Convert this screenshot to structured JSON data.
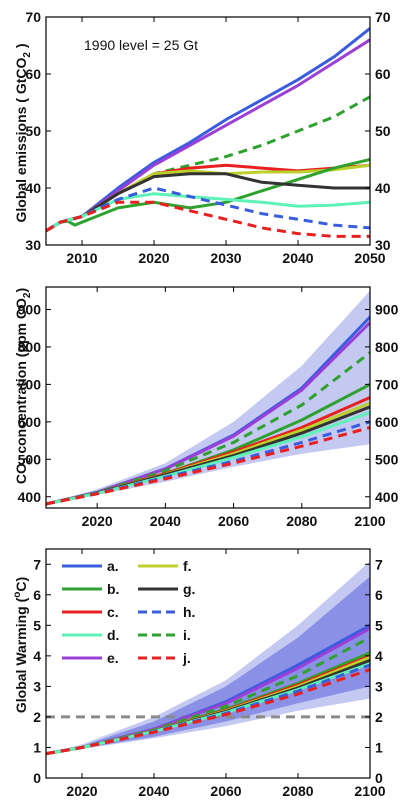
{
  "chart_data": [
    {
      "type": "line",
      "ylabel_main": "Global emissions ( GtCO",
      "ylabel_sub": "2",
      "ylabel_tail": " )",
      "annotation": "1990 level = 25 Gt",
      "xlim": [
        2005,
        2050
      ],
      "ylim": [
        30,
        70
      ],
      "xticks": [
        2010,
        2020,
        2030,
        2040,
        2050
      ],
      "yticks": [
        30,
        40,
        50,
        60,
        70
      ],
      "grid": false,
      "series": [
        {
          "name": "a.",
          "color": "#3a5de0",
          "dash": false,
          "x": [
            2005,
            2007,
            2010,
            2015,
            2020,
            2025,
            2030,
            2035,
            2040,
            2045,
            2050
          ],
          "y": [
            32.5,
            34,
            35,
            40,
            44.5,
            48,
            52,
            55.5,
            59,
            63,
            68
          ]
        },
        {
          "name": "e.",
          "color": "#9b3fd8",
          "dash": false,
          "x": [
            2005,
            2007,
            2010,
            2015,
            2020,
            2025,
            2030,
            2035,
            2040,
            2045,
            2050
          ],
          "y": [
            32.5,
            34,
            35,
            39.5,
            44,
            47.5,
            51,
            54.5,
            58,
            62,
            66
          ]
        },
        {
          "name": "i.",
          "color": "#2ea12e",
          "dash": true,
          "x": [
            2005,
            2007,
            2010,
            2015,
            2020,
            2025,
            2030,
            2035,
            2040,
            2045,
            2050
          ],
          "y": [
            32.5,
            34,
            35,
            39,
            42.5,
            44,
            45.5,
            47.5,
            50,
            52.5,
            56
          ]
        },
        {
          "name": "c.",
          "color": "#e8201f",
          "dash": false,
          "x": [
            2005,
            2007,
            2010,
            2015,
            2020,
            2025,
            2030,
            2035,
            2040,
            2045,
            2050
          ],
          "y": [
            32.5,
            34,
            35,
            39,
            42.5,
            43.5,
            44,
            43.5,
            43,
            43.5,
            44
          ]
        },
        {
          "name": "f.",
          "color": "#bcd02c",
          "dash": false,
          "x": [
            2005,
            2007,
            2010,
            2015,
            2020,
            2025,
            2030,
            2035,
            2040,
            2045,
            2050
          ],
          "y": [
            32.5,
            34,
            35,
            39,
            42.5,
            43,
            42.5,
            42.8,
            42.8,
            43.2,
            44
          ]
        },
        {
          "name": "b.",
          "color": "#2ea12e",
          "dash": false,
          "x": [
            2005,
            2007,
            2008,
            2009,
            2010,
            2012,
            2015,
            2020,
            2025,
            2030,
            2035,
            2040,
            2045,
            2050
          ],
          "y": [
            32.5,
            34,
            34.2,
            33.5,
            34,
            35,
            36.5,
            37.5,
            36.5,
            37.5,
            39.5,
            41.5,
            43.5,
            45
          ]
        },
        {
          "name": "g.",
          "color": "#333333",
          "dash": false,
          "x": [
            2005,
            2007,
            2010,
            2015,
            2020,
            2025,
            2030,
            2035,
            2040,
            2045,
            2050
          ],
          "y": [
            32.5,
            34,
            35,
            39,
            42,
            42.5,
            42.5,
            41,
            40.5,
            40,
            40
          ]
        },
        {
          "name": "d.",
          "color": "#5ef2b8",
          "dash": false,
          "x": [
            2005,
            2007,
            2010,
            2015,
            2020,
            2025,
            2030,
            2035,
            2040,
            2045,
            2050
          ],
          "y": [
            32.5,
            34,
            35,
            38,
            39,
            38.5,
            38,
            37.5,
            36.8,
            37,
            37.5
          ]
        },
        {
          "name": "h.",
          "color": "#3a5de0",
          "dash": true,
          "x": [
            2005,
            2007,
            2010,
            2015,
            2020,
            2025,
            2030,
            2035,
            2040,
            2045,
            2050
          ],
          "y": [
            32.5,
            34,
            35,
            38,
            40,
            38.5,
            37,
            35.5,
            34.5,
            33.5,
            33
          ]
        },
        {
          "name": "j.",
          "color": "#e8201f",
          "dash": true,
          "x": [
            2005,
            2007,
            2010,
            2015,
            2020,
            2025,
            2030,
            2035,
            2040,
            2045,
            2050
          ],
          "y": [
            32.5,
            34,
            35,
            37.5,
            37.5,
            36,
            34.5,
            33,
            32,
            31.5,
            31.5
          ]
        }
      ]
    },
    {
      "type": "line",
      "ylabel_pre": "CO",
      "ylabel_sub": "2",
      "ylabel_mid": " concentration (ppm CO",
      "ylabel_sub2": "2",
      "ylabel_tail": ")",
      "xlim": [
        2005,
        2100
      ],
      "ylim": [
        370,
        960
      ],
      "xticks": [
        2020,
        2040,
        2060,
        2080,
        2100
      ],
      "yticks": [
        400,
        500,
        600,
        700,
        800,
        900
      ],
      "grid": false,
      "band": {
        "color": "#c4c9f2",
        "x": [
          2005,
          2020,
          2040,
          2060,
          2080,
          2100
        ],
        "lower": [
          381,
          405,
          440,
          480,
          515,
          540
        ],
        "upper": [
          381,
          420,
          490,
          600,
          750,
          950
        ]
      },
      "series": [
        {
          "name": "a.",
          "color": "#3a5de0",
          "dash": false,
          "x": [
            2005,
            2020,
            2040,
            2060,
            2080,
            2100
          ],
          "y": [
            381,
            412,
            475,
            565,
            690,
            880
          ]
        },
        {
          "name": "e.",
          "color": "#9b3fd8",
          "dash": false,
          "x": [
            2005,
            2020,
            2040,
            2060,
            2080,
            2100
          ],
          "y": [
            381,
            412,
            474,
            562,
            685,
            865
          ]
        },
        {
          "name": "i.",
          "color": "#2ea12e",
          "dash": true,
          "x": [
            2005,
            2020,
            2040,
            2060,
            2080,
            2100
          ],
          "y": [
            381,
            411,
            470,
            545,
            645,
            785
          ]
        },
        {
          "name": "b.",
          "color": "#2ea12e",
          "dash": false,
          "x": [
            2005,
            2020,
            2040,
            2060,
            2080,
            2100
          ],
          "y": [
            381,
            410,
            462,
            525,
            605,
            700
          ]
        },
        {
          "name": "c.",
          "color": "#e8201f",
          "dash": false,
          "x": [
            2005,
            2020,
            2040,
            2060,
            2080,
            2100
          ],
          "y": [
            381,
            410,
            462,
            520,
            585,
            665
          ]
        },
        {
          "name": "f.",
          "color": "#bcd02c",
          "dash": false,
          "x": [
            2005,
            2020,
            2040,
            2060,
            2080,
            2100
          ],
          "y": [
            381,
            410,
            460,
            515,
            578,
            650
          ]
        },
        {
          "name": "g.",
          "color": "#333333",
          "dash": false,
          "x": [
            2005,
            2020,
            2040,
            2060,
            2080,
            2100
          ],
          "y": [
            381,
            410,
            459,
            510,
            570,
            640
          ]
        },
        {
          "name": "d.",
          "color": "#5ef2b8",
          "dash": false,
          "x": [
            2005,
            2020,
            2040,
            2060,
            2080,
            2100
          ],
          "y": [
            381,
            409,
            455,
            505,
            560,
            625
          ]
        },
        {
          "name": "h.",
          "color": "#3a5de0",
          "dash": true,
          "x": [
            2005,
            2020,
            2040,
            2060,
            2080,
            2100
          ],
          "y": [
            381,
            409,
            452,
            495,
            545,
            600
          ]
        },
        {
          "name": "j.",
          "color": "#e8201f",
          "dash": true,
          "x": [
            2005,
            2020,
            2040,
            2060,
            2080,
            2100
          ],
          "y": [
            381,
            408,
            448,
            490,
            535,
            585
          ]
        }
      ]
    },
    {
      "type": "line",
      "ylabel_main": "Global Warming (",
      "ylabel_sup": "o",
      "ylabel_tail": "C)",
      "xlim": [
        2010,
        2100
      ],
      "ylim": [
        0,
        7.5
      ],
      "xticks": [
        2020,
        2040,
        2060,
        2080,
        2100
      ],
      "yticks": [
        0,
        1,
        2,
        3,
        4,
        5,
        6,
        7
      ],
      "grid": false,
      "reference_line": {
        "y": 2,
        "color": "#8a8a8a"
      },
      "band_outer": {
        "color": "#c4c9f2",
        "x": [
          2010,
          2020,
          2040,
          2060,
          2080,
          2100
        ],
        "lower": [
          0.8,
          0.95,
          1.3,
          1.7,
          2.2,
          2.6
        ],
        "upper": [
          0.8,
          1.1,
          2.0,
          3.2,
          5.0,
          7.1
        ]
      },
      "band_inner": {
        "color": "#8a90e6",
        "x": [
          2010,
          2020,
          2040,
          2060,
          2080,
          2100
        ],
        "lower": [
          0.8,
          0.97,
          1.35,
          1.85,
          2.45,
          3.0
        ],
        "upper": [
          0.8,
          1.05,
          1.85,
          3.0,
          4.6,
          6.6
        ]
      },
      "legend": {
        "placement": "top-left",
        "columns": [
          [
            "a.",
            "b.",
            "c.",
            "d.",
            "e."
          ],
          [
            "f.",
            "g.",
            "h.",
            "i.",
            "j."
          ]
        ]
      },
      "series": [
        {
          "name": "a.",
          "color": "#3a5de0",
          "dash": false,
          "x": [
            2010,
            2020,
            2040,
            2060,
            2080,
            2100
          ],
          "y": [
            0.8,
            1.0,
            1.6,
            2.5,
            3.7,
            5.0
          ]
        },
        {
          "name": "e.",
          "color": "#9b3fd8",
          "dash": false,
          "x": [
            2010,
            2020,
            2040,
            2060,
            2080,
            2100
          ],
          "y": [
            0.8,
            1.0,
            1.6,
            2.45,
            3.6,
            4.9
          ]
        },
        {
          "name": "i.",
          "color": "#2ea12e",
          "dash": true,
          "x": [
            2010,
            2020,
            2040,
            2060,
            2080,
            2100
          ],
          "y": [
            0.8,
            1.0,
            1.58,
            2.35,
            3.35,
            4.6
          ]
        },
        {
          "name": "b.",
          "color": "#2ea12e",
          "dash": false,
          "x": [
            2010,
            2020,
            2040,
            2060,
            2080,
            2100
          ],
          "y": [
            0.8,
            1.0,
            1.55,
            2.25,
            3.1,
            4.1
          ]
        },
        {
          "name": "c.",
          "color": "#e8201f",
          "dash": false,
          "x": [
            2010,
            2020,
            2040,
            2060,
            2080,
            2100
          ],
          "y": [
            0.8,
            1.0,
            1.55,
            2.22,
            3.05,
            4.0
          ]
        },
        {
          "name": "f.",
          "color": "#bcd02c",
          "dash": false,
          "x": [
            2010,
            2020,
            2040,
            2060,
            2080,
            2100
          ],
          "y": [
            0.8,
            1.0,
            1.55,
            2.2,
            3.0,
            3.95
          ]
        },
        {
          "name": "g.",
          "color": "#333333",
          "dash": false,
          "x": [
            2010,
            2020,
            2040,
            2060,
            2080,
            2100
          ],
          "y": [
            0.8,
            1.0,
            1.54,
            2.18,
            2.95,
            3.85
          ]
        },
        {
          "name": "d.",
          "color": "#5ef2b8",
          "dash": false,
          "x": [
            2010,
            2020,
            2040,
            2060,
            2080,
            2100
          ],
          "y": [
            0.8,
            1.0,
            1.53,
            2.15,
            2.9,
            3.75
          ]
        },
        {
          "name": "h.",
          "color": "#3a5de0",
          "dash": true,
          "x": [
            2010,
            2020,
            2040,
            2060,
            2080,
            2100
          ],
          "y": [
            0.8,
            1.0,
            1.52,
            2.12,
            2.85,
            3.7
          ]
        },
        {
          "name": "j.",
          "color": "#e8201f",
          "dash": true,
          "x": [
            2010,
            2020,
            2040,
            2060,
            2080,
            2100
          ],
          "y": [
            0.8,
            1.0,
            1.5,
            2.08,
            2.75,
            3.55
          ]
        }
      ]
    }
  ]
}
